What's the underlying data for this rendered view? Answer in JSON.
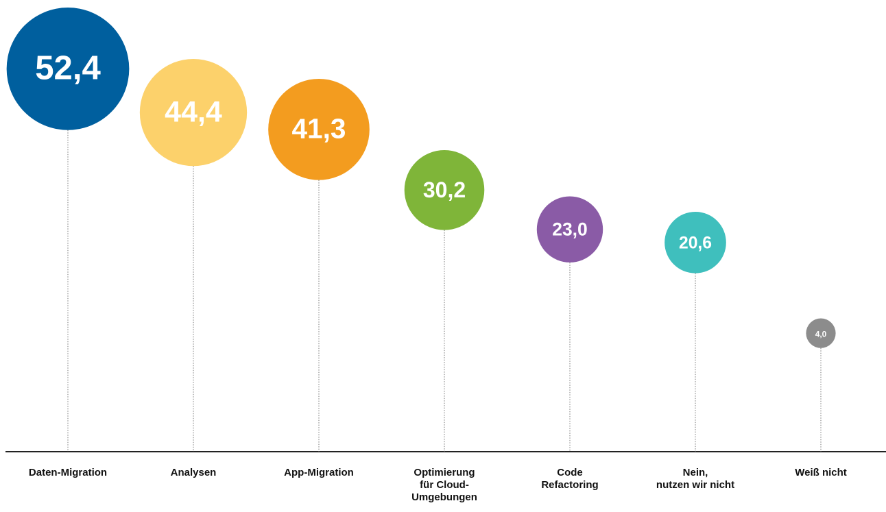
{
  "chart_data": {
    "type": "bubble",
    "categories": [
      [
        "Daten-Migration"
      ],
      [
        "Analysen"
      ],
      [
        "App-Migration"
      ],
      [
        "Optimierung",
        "für Cloud-",
        "Umgebungen"
      ],
      [
        "Code",
        "Refactoring"
      ],
      [
        "Nein,",
        "nutzen wir nicht"
      ],
      [
        "Weiß nicht"
      ]
    ],
    "values": [
      52.4,
      44.4,
      41.3,
      30.2,
      23.0,
      20.6,
      4.0
    ],
    "value_labels": [
      "52,4",
      "44,4",
      "41,3",
      "30,2",
      "23,0",
      "20,6",
      "4,0"
    ],
    "colors": [
      "#005f9e",
      "#fcd16b",
      "#f39c1f",
      "#7fb539",
      "#8a5ba6",
      "#3fbfbd",
      "#8c8c8c"
    ]
  }
}
